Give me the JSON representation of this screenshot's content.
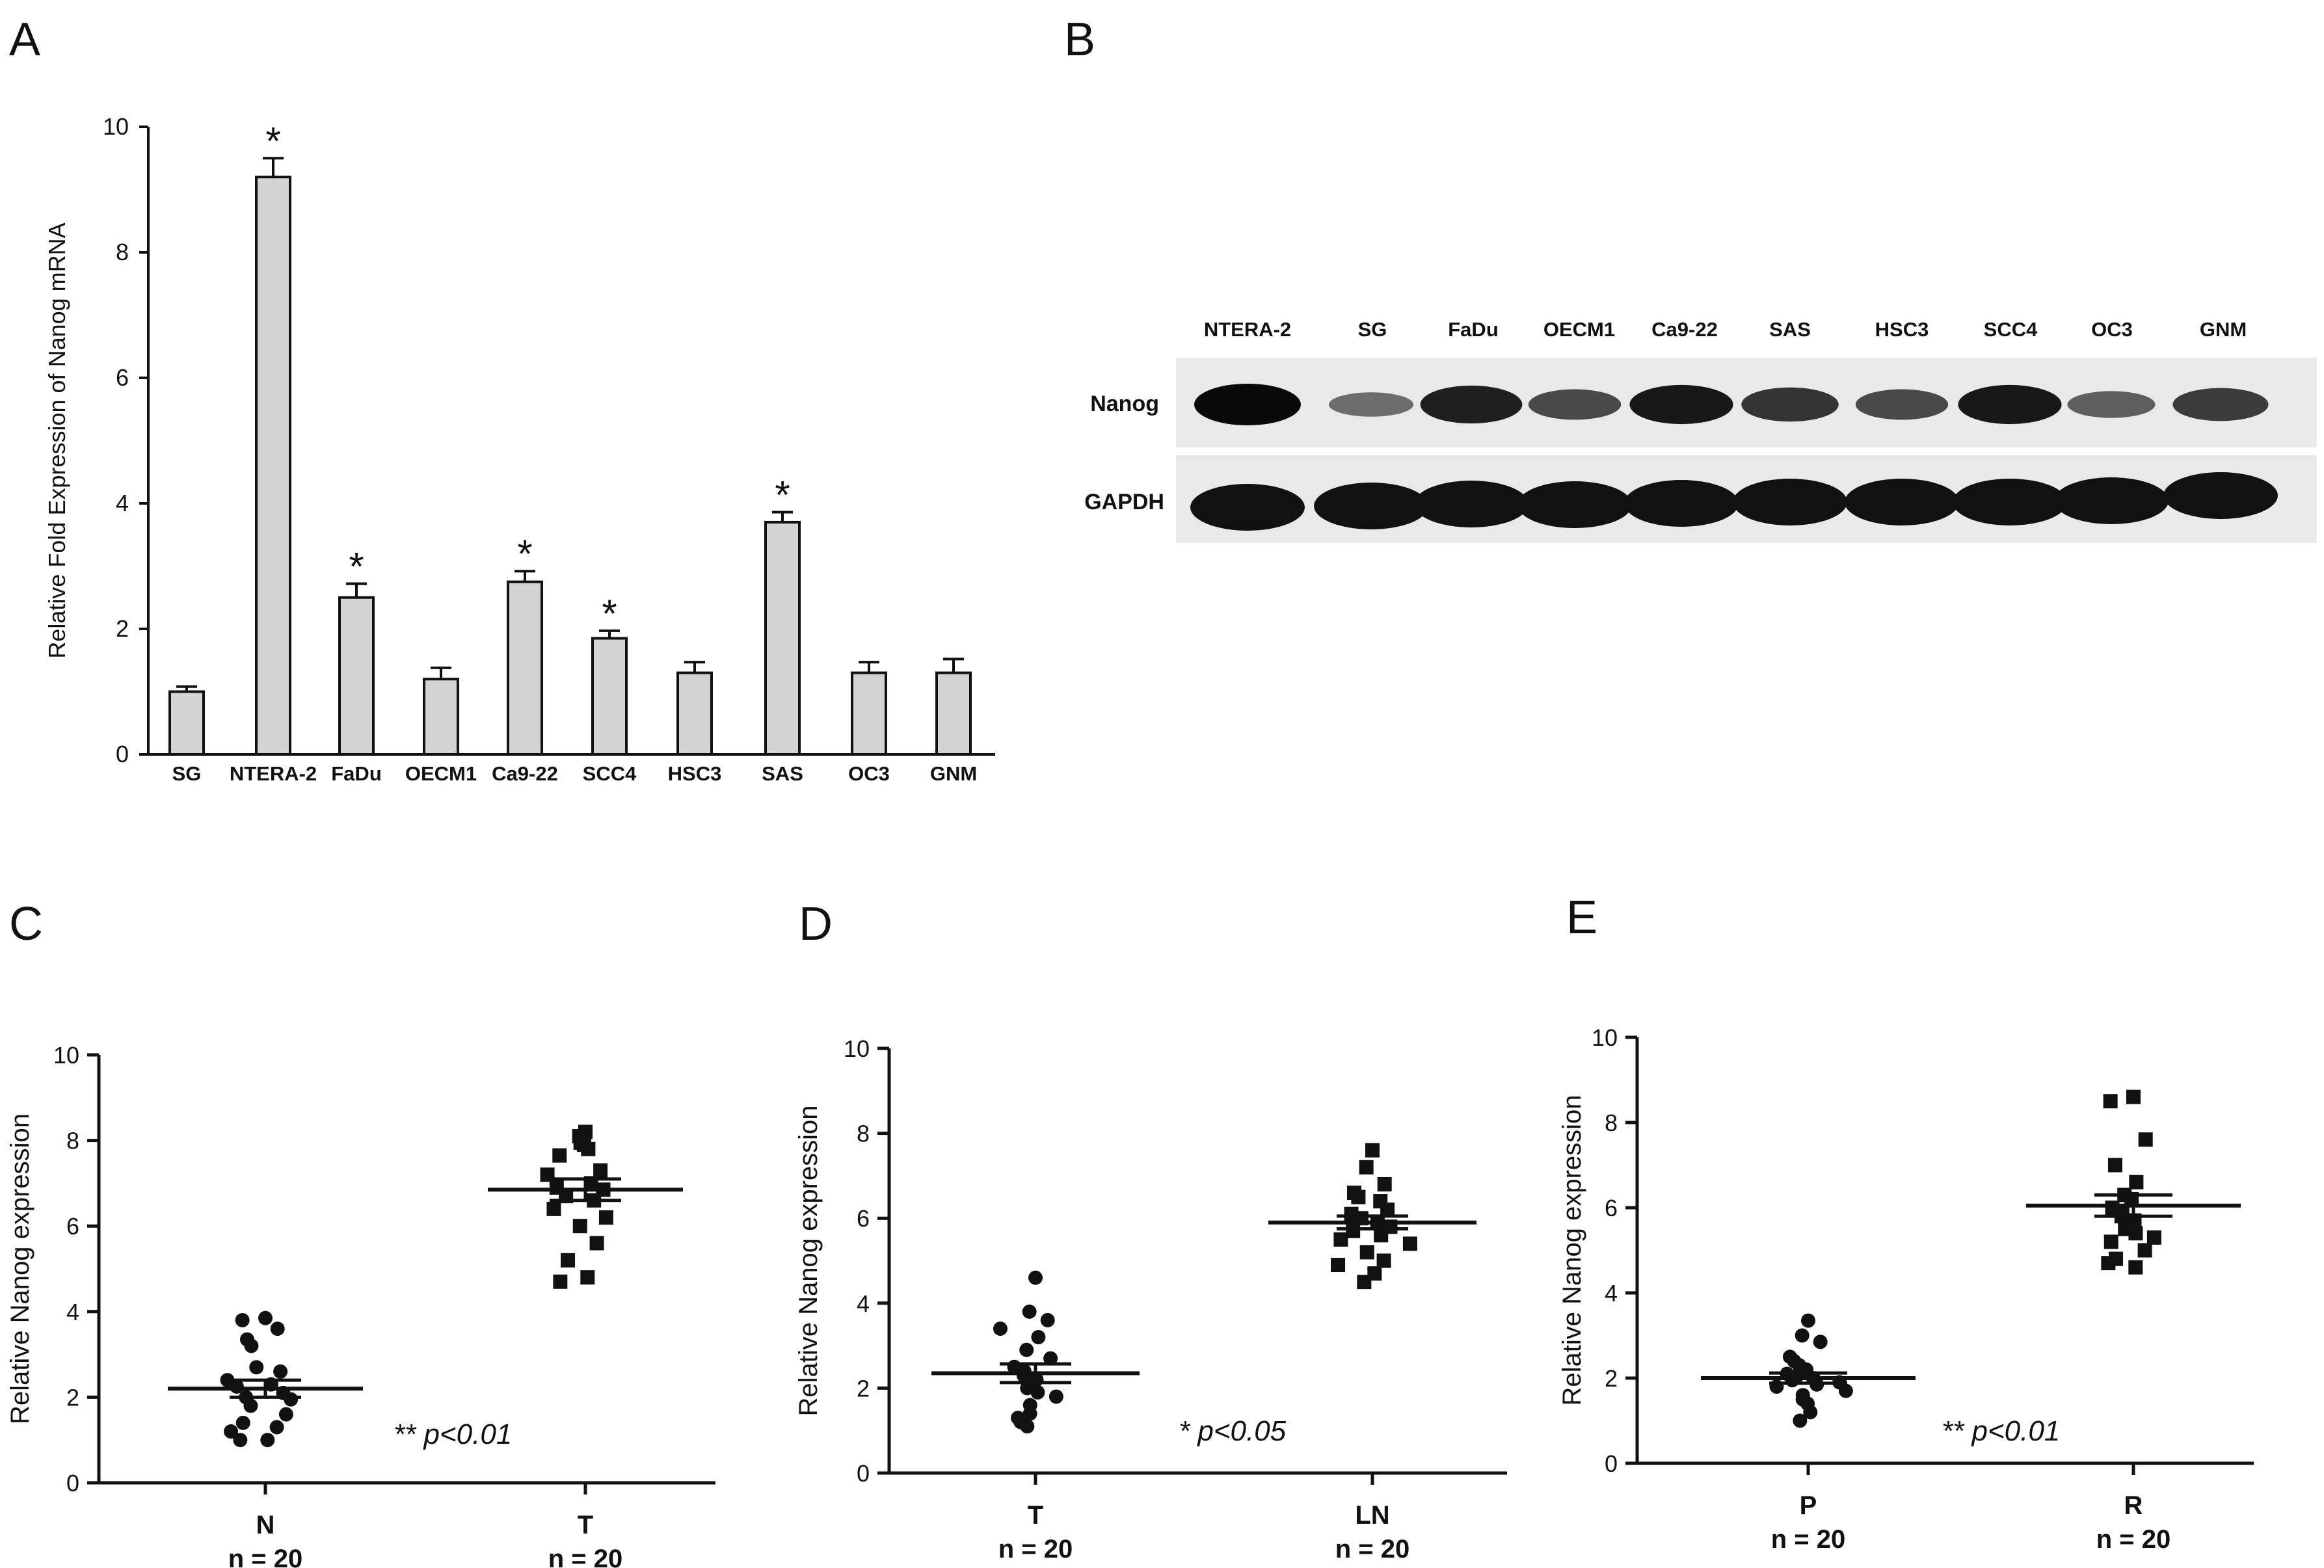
{
  "chart_data": [
    {
      "panel": "A",
      "type": "bar",
      "ylabel": "Relative Fold Expression of Nanog mRNA",
      "ylim": [
        0,
        10
      ],
      "yticks": [
        0,
        2,
        4,
        6,
        8,
        10
      ],
      "categories": [
        "SG",
        "NTERA-2",
        "FaDu",
        "OECM1",
        "Ca9-22",
        "SCC4",
        "HSC3",
        "SAS",
        "OC3",
        "GNM"
      ],
      "values": [
        1.0,
        9.2,
        2.5,
        1.2,
        2.75,
        1.85,
        1.3,
        3.7,
        1.3,
        1.3
      ],
      "errors": [
        0.08,
        0.3,
        0.22,
        0.18,
        0.17,
        0.12,
        0.17,
        0.16,
        0.17,
        0.22
      ],
      "significance": [
        "",
        "*",
        "*",
        "",
        "*",
        "*",
        "",
        "*",
        "",
        ""
      ],
      "colors": {
        "bar_fill": "#d3d3d3",
        "bar_stroke": "#111111"
      }
    },
    {
      "panel": "B",
      "type": "western_blot",
      "lanes": [
        "NTERA-2",
        "SG",
        "FaDu",
        "OECM1",
        "Ca9-22",
        "SAS",
        "HSC3",
        "SCC4",
        "OC3",
        "GNM"
      ],
      "rows": [
        {
          "name": "Nanog",
          "intensity": [
            1.0,
            0.3,
            0.85,
            0.55,
            0.9,
            0.7,
            0.55,
            0.9,
            0.4,
            0.65
          ]
        },
        {
          "name": "GAPDH",
          "intensity": [
            1.0,
            1.0,
            1.0,
            1.0,
            1.0,
            1.0,
            1.0,
            1.0,
            1.0,
            1.0
          ]
        }
      ]
    },
    {
      "panel": "C",
      "type": "scatter",
      "ylabel": "Relative Nanog expression",
      "ylim": [
        0,
        10
      ],
      "yticks": [
        0,
        2,
        4,
        6,
        8,
        10
      ],
      "annotation": "** p<0.01",
      "groups": [
        {
          "label": "N",
          "n_label": "n = 20",
          "marker": "circle",
          "mean": 2.2,
          "sem": 0.2,
          "values": [
            3.85,
            3.8,
            3.6,
            3.35,
            3.2,
            2.7,
            2.6,
            2.4,
            2.3,
            2.25,
            2.1,
            2.0,
            1.95,
            1.8,
            1.6,
            1.4,
            1.3,
            1.2,
            1.0,
            1.0
          ]
        },
        {
          "label": "T",
          "n_label": "n = 20",
          "marker": "square",
          "mean": 6.85,
          "sem": 0.25,
          "values": [
            8.2,
            8.1,
            7.95,
            7.9,
            7.8,
            7.65,
            7.3,
            7.2,
            7.0,
            6.9,
            6.85,
            6.7,
            6.6,
            6.4,
            6.2,
            6.0,
            5.6,
            5.2,
            4.8,
            4.7
          ]
        }
      ]
    },
    {
      "panel": "D",
      "type": "scatter",
      "ylabel": "Relative Nanog expression",
      "ylim": [
        0,
        10
      ],
      "yticks": [
        0,
        2,
        4,
        6,
        8,
        10
      ],
      "annotation": "* p<0.05",
      "groups": [
        {
          "label": "T",
          "n_label": "n = 20",
          "marker": "circle",
          "mean": 2.35,
          "sem": 0.22,
          "values": [
            4.6,
            3.8,
            3.6,
            3.4,
            3.2,
            2.9,
            2.7,
            2.5,
            2.4,
            2.3,
            2.2,
            2.1,
            2.0,
            1.9,
            1.8,
            1.6,
            1.4,
            1.3,
            1.2,
            1.1
          ]
        },
        {
          "label": "LN",
          "n_label": "n = 20",
          "marker": "square",
          "mean": 5.9,
          "sem": 0.15,
          "values": [
            7.6,
            7.2,
            6.8,
            6.6,
            6.5,
            6.4,
            6.2,
            6.1,
            6.0,
            5.9,
            5.8,
            5.7,
            5.6,
            5.5,
            5.4,
            5.2,
            5.0,
            4.9,
            4.7,
            4.5
          ]
        }
      ]
    },
    {
      "panel": "E",
      "type": "scatter",
      "ylabel": "Relative Nanog expression",
      "ylim": [
        0,
        10
      ],
      "yticks": [
        0,
        2,
        4,
        6,
        8,
        10
      ],
      "annotation": "** p<0.01",
      "groups": [
        {
          "label": "P",
          "n_label": "n = 20",
          "marker": "circle",
          "mean": 2.0,
          "sem": 0.12,
          "values": [
            3.35,
            3.0,
            2.85,
            2.5,
            2.4,
            2.3,
            2.2,
            2.1,
            2.05,
            2.0,
            1.95,
            1.9,
            1.85,
            1.8,
            1.7,
            1.6,
            1.5,
            1.4,
            1.2,
            1.0
          ]
        },
        {
          "label": "R",
          "n_label": "n = 20",
          "marker": "square",
          "mean": 6.05,
          "sem": 0.25,
          "values": [
            8.6,
            8.5,
            7.6,
            7.0,
            6.6,
            6.3,
            6.2,
            6.0,
            5.9,
            5.8,
            5.7,
            5.6,
            5.5,
            5.4,
            5.3,
            5.2,
            5.0,
            4.8,
            4.6,
            4.7
          ]
        }
      ]
    }
  ],
  "panel_letters": [
    "A",
    "B",
    "C",
    "D",
    "E"
  ]
}
